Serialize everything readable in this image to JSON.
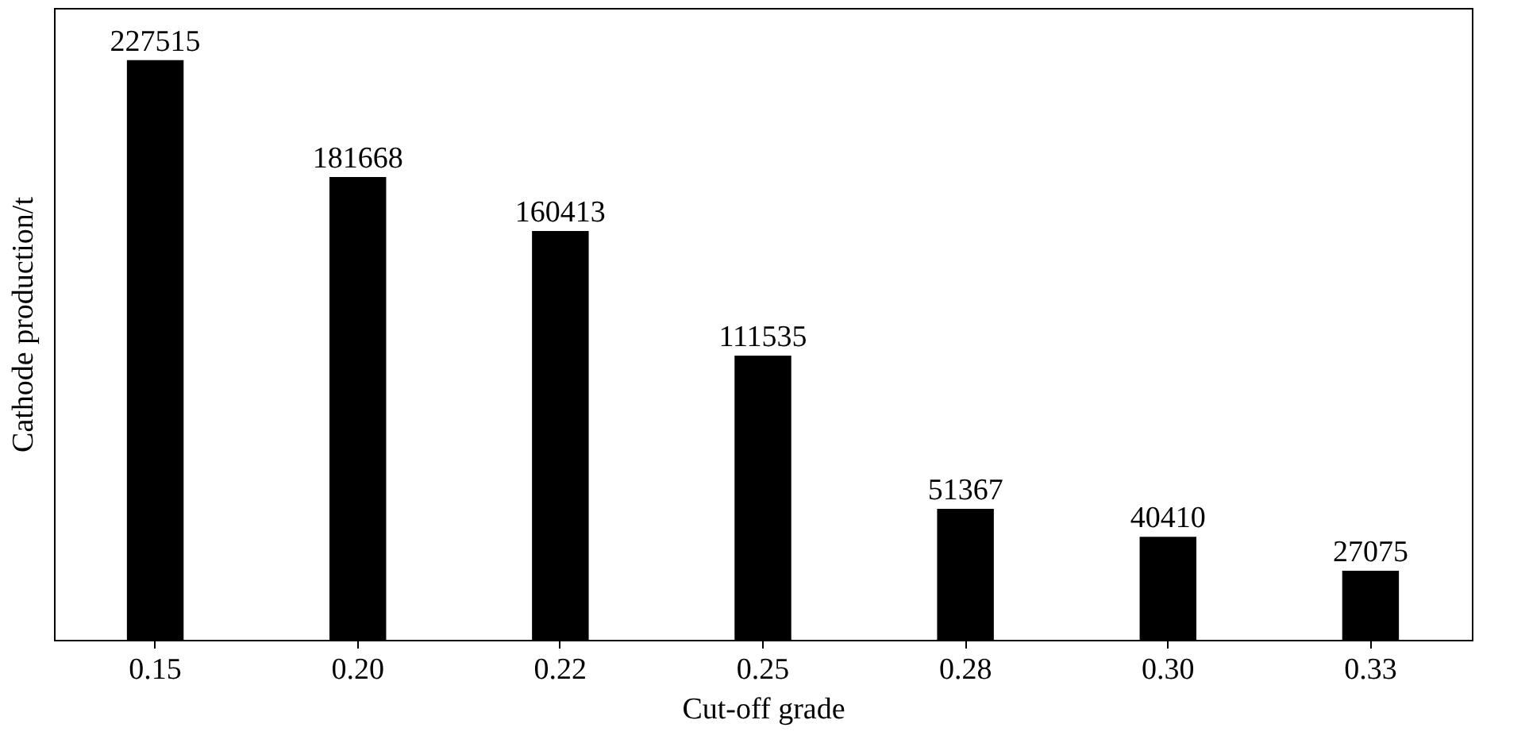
{
  "chart_data": {
    "type": "bar",
    "xlabel": "Cut-off grade",
    "ylabel": "Cathode production/t",
    "categories": [
      "0.15",
      "0.20",
      "0.22",
      "0.25",
      "0.28",
      "0.30",
      "0.33"
    ],
    "values": [
      227515,
      181668,
      160413,
      111535,
      51367,
      40410,
      27075
    ],
    "color": "#000000",
    "data_labels": true
  }
}
